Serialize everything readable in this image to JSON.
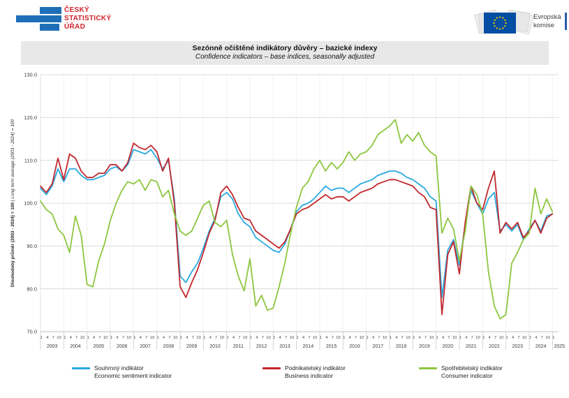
{
  "logo_csu": {
    "line1": "ČESKÝ",
    "line2": "STATISTICKÝ",
    "line3": "ÚŘAD"
  },
  "logo_eu": {
    "line1": "Evropská",
    "line2": "komise"
  },
  "header": {
    "title": "Sezónně očištěné indikátory důvěry – bazické indexy",
    "subtitle": "Confidence indicators – base indices, seasonally adjusted"
  },
  "chart_data": {
    "type": "line",
    "title": "Sezónně očištěné indikátory důvěry – bazické indexy",
    "subtitle": "Confidence indicators – base indices, seasonally adjusted",
    "x_start": 2003,
    "x_step_years": 0.25,
    "x_end_label": "2025",
    "month_ticks": [
      "1",
      "4",
      "7",
      "10"
    ],
    "years": [
      "2003",
      "2004",
      "2005",
      "2006",
      "2007",
      "2008",
      "2009",
      "2010",
      "2011",
      "2012",
      "2013",
      "2014",
      "2015",
      "2016",
      "2017",
      "2018",
      "2019",
      "2020",
      "2021",
      "2022",
      "2023",
      "2024",
      "2025"
    ],
    "ylim": [
      70,
      130
    ],
    "ytick_labels": [
      "130.0",
      "120.0",
      "110.0",
      "100.0",
      "90.0",
      "80.0",
      "70.0"
    ],
    "ylabel_cz": "Dlouhodobý průměr (2003 - 2024) = 100",
    "ylabel_sep": " | ",
    "ylabel_en": "Long term average (2003 - 2024) = 100",
    "grid": true,
    "legend_position": "bottom",
    "colors": {
      "esi": "#29A9DF",
      "business": "#C1272D",
      "consumer": "#8DC63F",
      "grid": "#DCDCDC"
    },
    "series": [
      {
        "name_cz": "Souhrnný indikátor",
        "name_en": "Economic sentiment indicator",
        "color": "#29A9DF",
        "values": [
          103.5,
          102,
          104,
          108,
          105,
          108,
          108,
          106.5,
          105.5,
          105.5,
          106,
          106.5,
          108,
          108.5,
          107.5,
          109,
          112.5,
          112,
          111.5,
          112.5,
          110.5,
          108,
          110,
          101,
          83,
          81.5,
          84,
          86,
          89.5,
          93.5,
          96.5,
          101.5,
          102.5,
          101,
          97.5,
          95.5,
          94.5,
          92,
          91,
          90,
          89,
          88.5,
          90.5,
          94,
          98,
          99.5,
          100,
          101,
          102.5,
          104,
          103,
          103.5,
          103.5,
          102.5,
          103.5,
          104.5,
          105,
          105.5,
          106.5,
          107,
          107.5,
          107.5,
          107,
          106,
          105.5,
          104.5,
          103.5,
          101.5,
          100.5,
          78,
          89,
          91.5,
          85.5,
          95,
          103,
          100,
          97.5,
          101,
          102.5,
          93.5,
          95,
          93.5,
          95,
          91.5,
          94,
          96,
          93.5,
          97,
          97.5
        ]
      },
      {
        "name_cz": "Podnikatelský indikátor",
        "name_en": "Business indicator",
        "color": "#C1272D",
        "values": [
          104,
          102.5,
          104.5,
          110.5,
          105.5,
          111.5,
          110.5,
          107.5,
          106,
          106,
          107,
          107,
          109,
          109,
          107.5,
          109.5,
          114,
          113,
          112.5,
          113.5,
          112,
          107.5,
          110.5,
          100,
          80.5,
          78,
          81.5,
          84.5,
          88.5,
          93,
          96,
          102.5,
          104,
          102,
          99,
          96.5,
          96,
          93.5,
          92.5,
          91.5,
          90.5,
          89.5,
          91,
          94,
          97.5,
          98.5,
          99,
          100,
          101,
          102,
          101,
          101.5,
          101.5,
          100.5,
          101.5,
          102.5,
          103,
          103.5,
          104.5,
          105,
          105.5,
          105.5,
          105,
          104.5,
          104,
          102.5,
          101.5,
          99,
          98.5,
          74,
          88,
          91,
          83.5,
          95.5,
          104,
          100,
          98.5,
          103.5,
          107.5,
          93,
          95.5,
          94,
          95.5,
          92,
          93.5,
          96,
          93,
          96.5,
          97.5
        ]
      },
      {
        "name_cz": "Spotřebitelský indikátor",
        "name_en": "Consumer indicator",
        "color": "#8DC63F",
        "values": [
          100.5,
          98.5,
          97.5,
          94,
          92.5,
          88.5,
          97,
          92.5,
          81,
          80.5,
          86.5,
          90.5,
          96,
          100,
          103,
          105,
          104.5,
          105.5,
          103,
          105.5,
          105,
          101.5,
          103,
          97.5,
          93.5,
          92.5,
          93.5,
          96.5,
          99.5,
          100.5,
          95.5,
          94.5,
          96,
          88,
          83,
          79.5,
          87,
          76,
          78.5,
          75,
          75.5,
          80.5,
          86,
          93,
          99,
          103.5,
          105,
          108,
          110,
          107.5,
          109.5,
          108,
          109.5,
          112,
          110,
          111.5,
          112,
          113.5,
          116,
          117,
          118,
          119.5,
          114,
          116,
          114.5,
          116.5,
          113.5,
          112,
          111,
          93,
          96.5,
          94,
          86.5,
          93.5,
          104,
          102,
          97.5,
          84,
          76,
          73,
          74,
          86,
          88.5,
          91.5,
          93,
          103.5,
          97.5,
          101,
          98
        ]
      }
    ]
  }
}
